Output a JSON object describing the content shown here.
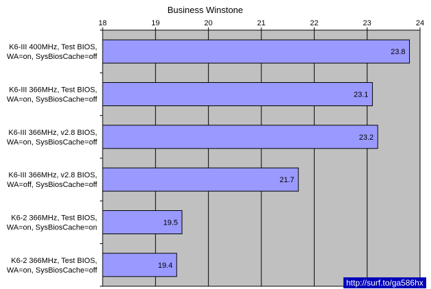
{
  "watermark": "http://surf.to/ga586hx",
  "colors": {
    "plot_background": "#c0c0c0",
    "bar_fill": "#9999ff",
    "bar_stroke": "#000000",
    "gridline": "#000000",
    "watermark_background": "#0000b8",
    "watermark_text": "#ffffff"
  },
  "chart_data": {
    "type": "bar",
    "orientation": "horizontal",
    "title": "Business Winstone",
    "xlabel": "",
    "ylabel": "",
    "xlim": [
      18,
      24
    ],
    "x_ticks": [
      18,
      19,
      20,
      21,
      22,
      23,
      24
    ],
    "x_axis_position": "top",
    "grid": true,
    "legend": "none",
    "categories": [
      [
        "K6-III 400MHz, Test BIOS,",
        "WA=on, SysBiosCache=off"
      ],
      [
        "K6-III 366MHz, Test BIOS,",
        "WA=on, SysBiosCache=off"
      ],
      [
        "K6-III 366MHz, v2.8 BIOS,",
        "WA=on, SysBiosCache=off"
      ],
      [
        "K6-III 366MHz, v2.8 BIOS,",
        "WA=off, SysBiosCache=off"
      ],
      [
        "K6-2 366MHz, Test BIOS,",
        "WA=on, SysBiosCache=on"
      ],
      [
        "K6-2 366MHz, Test BIOS,",
        "WA=on, SysBiosCache=off"
      ]
    ],
    "values": [
      23.8,
      23.1,
      23.2,
      21.7,
      19.5,
      19.4
    ],
    "data_labels": [
      "23.8",
      "23.1",
      "23.2",
      "21.7",
      "19.5",
      "19.4"
    ]
  }
}
